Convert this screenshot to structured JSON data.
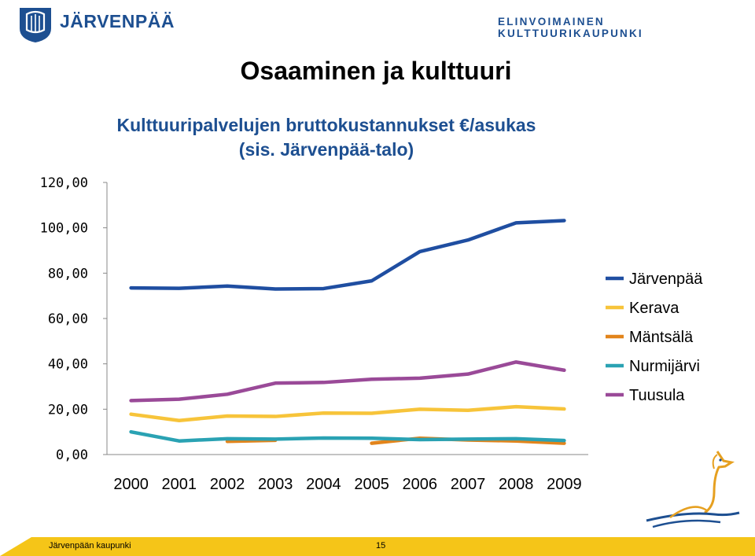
{
  "header": {
    "brand_name": "JÄRVENPÄÄ",
    "tagline": "ELINVOIMAINEN KULTTUURIKAUPUNKI"
  },
  "slide": {
    "title": "Osaaminen ja kulttuuri"
  },
  "footer": {
    "left_text": "Järvenpään kaupunki",
    "page_number": "15"
  },
  "colors": {
    "brand_blue": "#1d4f91",
    "footer_yellow": "#f5c518"
  },
  "chart_data": {
    "type": "line",
    "title_lines": [
      "Kulttuuripalvelujen bruttokustannukset €/asukas",
      "(sis. Järvenpää-talo)"
    ],
    "x": [
      "2000",
      "2001",
      "2002",
      "2003",
      "2004",
      "2005",
      "2006",
      "2007",
      "2008",
      "2009"
    ],
    "y_ticks": [
      "0,00",
      "20,00",
      "40,00",
      "60,00",
      "80,00",
      "100,00",
      "120,00"
    ],
    "ylim": [
      0,
      120
    ],
    "legend_position": "right",
    "series": [
      {
        "name": "Järvenpää",
        "color": "#1f4ea1",
        "values": [
          73.5,
          73.3,
          74.3,
          73.0,
          73.2,
          76.6,
          89.5,
          94.6,
          102.2,
          103.2
        ]
      },
      {
        "name": "Kerava",
        "color": "#f7c43a",
        "values": [
          17.8,
          15.0,
          17.0,
          16.8,
          18.3,
          18.2,
          20.0,
          19.5,
          21.1,
          20.1
        ]
      },
      {
        "name": "Mäntsälä",
        "color": "#e2841b",
        "values": [
          null,
          null,
          5.8,
          6.3,
          null,
          5.0,
          7.2,
          6.4,
          6.0,
          5.0
        ]
      },
      {
        "name": "Nurmijärvi",
        "color": "#2aa2b3",
        "values": [
          10.0,
          6.0,
          7.0,
          6.8,
          7.3,
          7.2,
          6.6,
          6.8,
          7.0,
          6.2
        ]
      },
      {
        "name": "Tuusula",
        "color": "#9a4a98",
        "values": [
          23.8,
          24.4,
          26.6,
          31.5,
          31.8,
          33.2,
          33.7,
          35.5,
          40.8,
          37.2
        ]
      }
    ]
  }
}
